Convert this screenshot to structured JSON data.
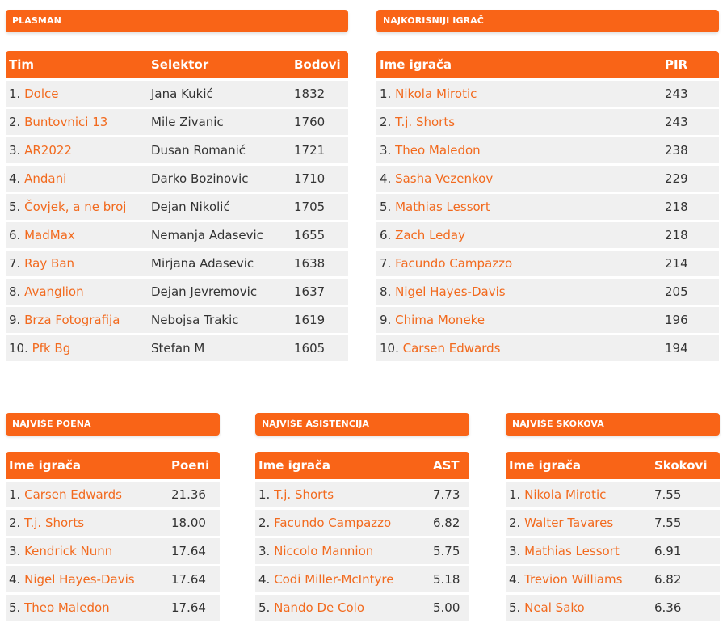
{
  "standings": {
    "title": "PLASMAN",
    "headers": [
      "Tim",
      "Selektor",
      "Bodovi"
    ],
    "rows": [
      {
        "rank": "1.",
        "team": "Dolce",
        "selector": "Jana Kukić",
        "points": "1832"
      },
      {
        "rank": "2.",
        "team": "Buntovnici 13",
        "selector": "Mile Zivanic",
        "points": "1760"
      },
      {
        "rank": "3.",
        "team": "AR2022",
        "selector": "Dusan Romanić",
        "points": "1721"
      },
      {
        "rank": "4.",
        "team": "Andani",
        "selector": "Darko Bozinovic",
        "points": "1710"
      },
      {
        "rank": "5.",
        "team": "Čovjek, a ne broj",
        "selector": "Dejan Nikolić",
        "points": "1705"
      },
      {
        "rank": "6.",
        "team": "MadMax",
        "selector": "Nemanja Adasevic",
        "points": "1655"
      },
      {
        "rank": "7.",
        "team": "Ray Ban",
        "selector": "Mirjana Adasevic",
        "points": "1638"
      },
      {
        "rank": "8.",
        "team": "Avanglion",
        "selector": "Dejan Jevremovic",
        "points": "1637"
      },
      {
        "rank": "9.",
        "team": "Brza Fotografija",
        "selector": "Nebojsa Trakic",
        "points": "1619"
      },
      {
        "rank": "10.",
        "team": "Pfk Bg",
        "selector": "Stefan M",
        "points": "1605"
      }
    ]
  },
  "mvp": {
    "title": "NAJKORISNIJI IGRAČ",
    "headers": [
      "Ime igrača",
      "PIR"
    ],
    "rows": [
      {
        "rank": "1.",
        "name": "Nikola Mirotic",
        "value": "243"
      },
      {
        "rank": "2.",
        "name": "T.j. Shorts",
        "value": "243"
      },
      {
        "rank": "3.",
        "name": "Theo Maledon",
        "value": "238"
      },
      {
        "rank": "4.",
        "name": "Sasha Vezenkov",
        "value": "229"
      },
      {
        "rank": "5.",
        "name": "Mathias Lessort",
        "value": "218"
      },
      {
        "rank": "6.",
        "name": "Zach Leday",
        "value": "218"
      },
      {
        "rank": "7.",
        "name": "Facundo Campazzo",
        "value": "214"
      },
      {
        "rank": "8.",
        "name": "Nigel Hayes-Davis",
        "value": "205"
      },
      {
        "rank": "9.",
        "name": "Chima Moneke",
        "value": "196"
      },
      {
        "rank": "10.",
        "name": "Carsen Edwards",
        "value": "194"
      }
    ]
  },
  "points": {
    "title": "NAJVIŠE POENA",
    "headers": [
      "Ime igrača",
      "Poeni"
    ],
    "rows": [
      {
        "rank": "1.",
        "name": "Carsen Edwards",
        "value": "21.36"
      },
      {
        "rank": "2.",
        "name": "T.j. Shorts",
        "value": "18.00"
      },
      {
        "rank": "3.",
        "name": "Kendrick Nunn",
        "value": "17.64"
      },
      {
        "rank": "4.",
        "name": "Nigel Hayes-Davis",
        "value": "17.64"
      },
      {
        "rank": "5.",
        "name": "Theo Maledon",
        "value": "17.64"
      }
    ]
  },
  "assists": {
    "title": "NAJVIŠE ASISTENCIJA",
    "headers": [
      "Ime igrača",
      "AST"
    ],
    "rows": [
      {
        "rank": "1.",
        "name": "T.j. Shorts",
        "value": "7.73"
      },
      {
        "rank": "2.",
        "name": "Facundo Campazzo",
        "value": "6.82"
      },
      {
        "rank": "3.",
        "name": "Niccolo Mannion",
        "value": "5.75"
      },
      {
        "rank": "4.",
        "name": "Codi Miller-McIntyre",
        "value": "5.18"
      },
      {
        "rank": "5.",
        "name": "Nando De Colo",
        "value": "5.00"
      }
    ]
  },
  "rebounds": {
    "title": "NAJVIŠE SKOKOVA",
    "headers": [
      "Ime igrača",
      "Skokovi"
    ],
    "rows": [
      {
        "rank": "1.",
        "name": "Nikola Mirotic",
        "value": "7.55"
      },
      {
        "rank": "2.",
        "name": "Walter Tavares",
        "value": "7.55"
      },
      {
        "rank": "3.",
        "name": "Mathias Lessort",
        "value": "6.91"
      },
      {
        "rank": "4.",
        "name": "Trevion Williams",
        "value": "6.82"
      },
      {
        "rank": "5.",
        "name": "Neal Sako",
        "value": "6.36"
      }
    ]
  },
  "colors": {
    "accent": "#f96417",
    "link": "#f26a1e",
    "row_bg": "#f0f0f0"
  }
}
